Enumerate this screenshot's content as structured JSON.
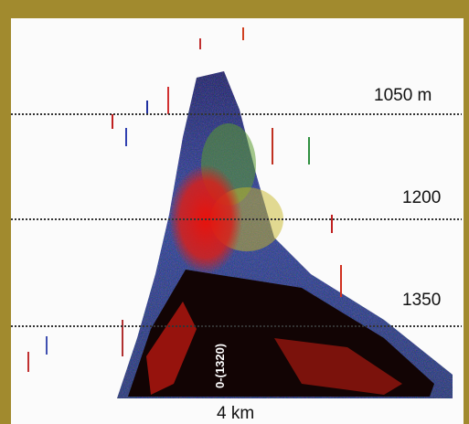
{
  "labels": {
    "depths": [
      "1050 m",
      "1200",
      "1350"
    ],
    "distance": "4 km",
    "marker": "0-(1320)"
  }
}
